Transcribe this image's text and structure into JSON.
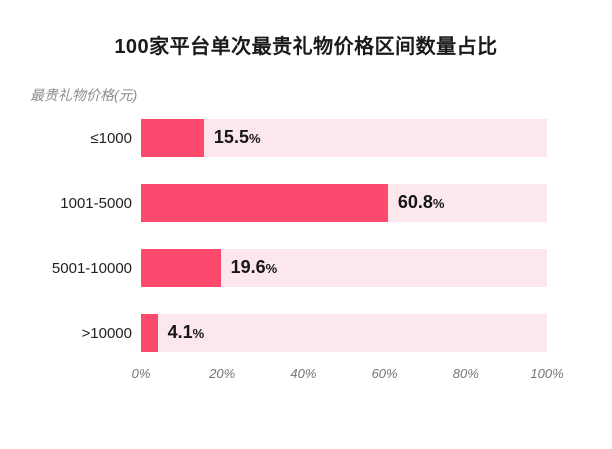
{
  "chart_data": {
    "type": "bar",
    "orientation": "horizontal",
    "title": "100家平台单次最贵礼物价格区间数量占比",
    "ylabel": "最贵礼物价格(元)",
    "xlabel": "",
    "categories": [
      "≤1000",
      "1001-5000",
      "5001-10000",
      ">10000"
    ],
    "values": [
      15.5,
      60.8,
      19.6,
      4.1
    ],
    "value_labels": [
      "15.5",
      "60.8",
      "19.6",
      "4.1"
    ],
    "unit": "%",
    "x_ticks": [
      "0%",
      "20%",
      "40%",
      "60%",
      "80%",
      "100%"
    ],
    "xlim": [
      0,
      100
    ],
    "grid": false,
    "legend": "none",
    "colors": {
      "bar": "#fc4a6e",
      "track": "#fce7ec",
      "title_text": "#1a1a1a",
      "category_text": "#1f1f1f",
      "value_text": "#161616",
      "axis_text": "#757575",
      "ylabel_text": "#8c8c8c",
      "background": "#ffffff"
    }
  }
}
